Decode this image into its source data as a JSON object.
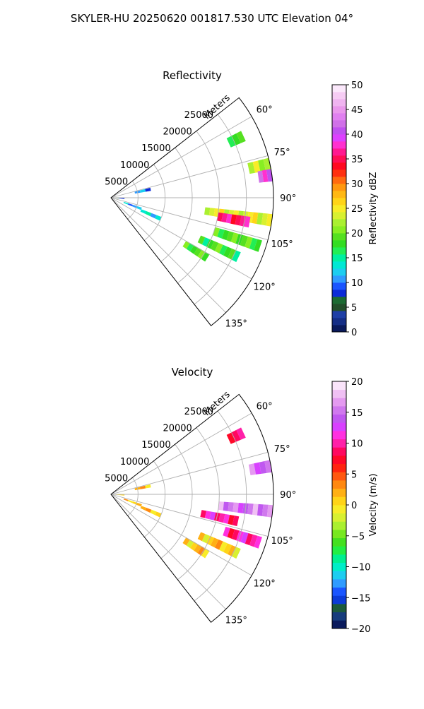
{
  "figure": {
    "title": "SKYLER-HU  20250620  001817.530 UTC Elevation 04°"
  },
  "chart_data": [
    {
      "type": "heatmap",
      "projection": "polar-sector",
      "title": "Reflectivity",
      "radial_label": "Meters",
      "radial_ticks": [
        5000,
        10000,
        15000,
        20000,
        25000
      ],
      "radial_tick_labels": [
        "5000",
        "10000",
        "15000",
        "20000",
        "25000"
      ],
      "radial_max": 30000,
      "angle_range_deg": [
        52,
        142
      ],
      "angle_ticks": [
        60,
        75,
        90,
        105,
        120,
        135
      ],
      "angle_tick_labels": [
        "60°",
        "75°",
        "90°",
        "105°",
        "120°",
        "135°"
      ],
      "grid": true,
      "colorbar": {
        "label": "Reflectivity dBZ",
        "range": [
          0,
          50
        ],
        "ticks": [
          0,
          5,
          10,
          15,
          20,
          25,
          30,
          35,
          40,
          45,
          50
        ],
        "tick_labels": [
          "0",
          "5",
          "10",
          "15",
          "20",
          "25",
          "30",
          "35",
          "40",
          "45",
          "50"
        ]
      },
      "echoes": [
        {
          "angle": 98,
          "r_start": 17500,
          "r_end": 30000,
          "value": 24
        },
        {
          "angle": 100,
          "r_start": 20000,
          "r_end": 26000,
          "value": 36
        },
        {
          "angle": 78,
          "r_start": 26000,
          "r_end": 30000,
          "value": 22
        },
        {
          "angle": 82,
          "r_start": 27500,
          "r_end": 30000,
          "value": 40
        },
        {
          "angle": 65,
          "r_start": 24000,
          "r_end": 27000,
          "value": 18
        },
        {
          "angle": 108,
          "r_start": 20000,
          "r_end": 29000,
          "value": 19
        },
        {
          "angle": 115,
          "r_start": 18000,
          "r_end": 26000,
          "value": 18
        },
        {
          "angle": 122,
          "r_start": 16000,
          "r_end": 21000,
          "value": 19
        },
        {
          "angle": 78,
          "r_start": 4500,
          "r_end": 7500,
          "value": 10
        },
        {
          "angle": 93,
          "r_start": 500,
          "r_end": 2500,
          "value": 8
        },
        {
          "angle": 110,
          "r_start": 2500,
          "r_end": 6000,
          "value": 11
        },
        {
          "angle": 113,
          "r_start": 6000,
          "r_end": 10000,
          "value": 13
        }
      ]
    },
    {
      "type": "heatmap",
      "projection": "polar-sector",
      "title": "Velocity",
      "radial_label": "Meters",
      "radial_ticks": [
        5000,
        10000,
        15000,
        20000,
        25000
      ],
      "radial_tick_labels": [
        "5000",
        "10000",
        "15000",
        "20000",
        "25000"
      ],
      "radial_max": 30000,
      "angle_range_deg": [
        52,
        142
      ],
      "angle_ticks": [
        60,
        75,
        90,
        105,
        120,
        135
      ],
      "angle_tick_labels": [
        "60°",
        "75°",
        "90°",
        "105°",
        "120°",
        "135°"
      ],
      "grid": true,
      "colorbar": {
        "label": "Velocity (m/s)",
        "range": [
          -20,
          20
        ],
        "ticks": [
          -20,
          -15,
          -10,
          -5,
          0,
          5,
          10,
          15,
          20
        ],
        "tick_labels": [
          "−20",
          "−15",
          "−10",
          "−5",
          "0",
          "5",
          "10",
          "15",
          "20"
        ]
      },
      "echoes": [
        {
          "angle": 96,
          "r_start": 20000,
          "r_end": 30000,
          "value": 15
        },
        {
          "angle": 102,
          "r_start": 17000,
          "r_end": 24000,
          "value": 10
        },
        {
          "angle": 80,
          "r_start": 26000,
          "r_end": 30000,
          "value": 15
        },
        {
          "angle": 65,
          "r_start": 24000,
          "r_end": 27000,
          "value": 9
        },
        {
          "angle": 108,
          "r_start": 22000,
          "r_end": 29000,
          "value": 10
        },
        {
          "angle": 115,
          "r_start": 18000,
          "r_end": 26000,
          "value": 1
        },
        {
          "angle": 122,
          "r_start": 16000,
          "r_end": 21000,
          "value": 1
        },
        {
          "angle": 78,
          "r_start": 4500,
          "r_end": 7500,
          "value": 1
        },
        {
          "angle": 93,
          "r_start": 500,
          "r_end": 2500,
          "value": 1
        },
        {
          "angle": 110,
          "r_start": 2500,
          "r_end": 6000,
          "value": 1
        },
        {
          "angle": 113,
          "r_start": 6000,
          "r_end": 10000,
          "value": 1
        }
      ]
    }
  ]
}
